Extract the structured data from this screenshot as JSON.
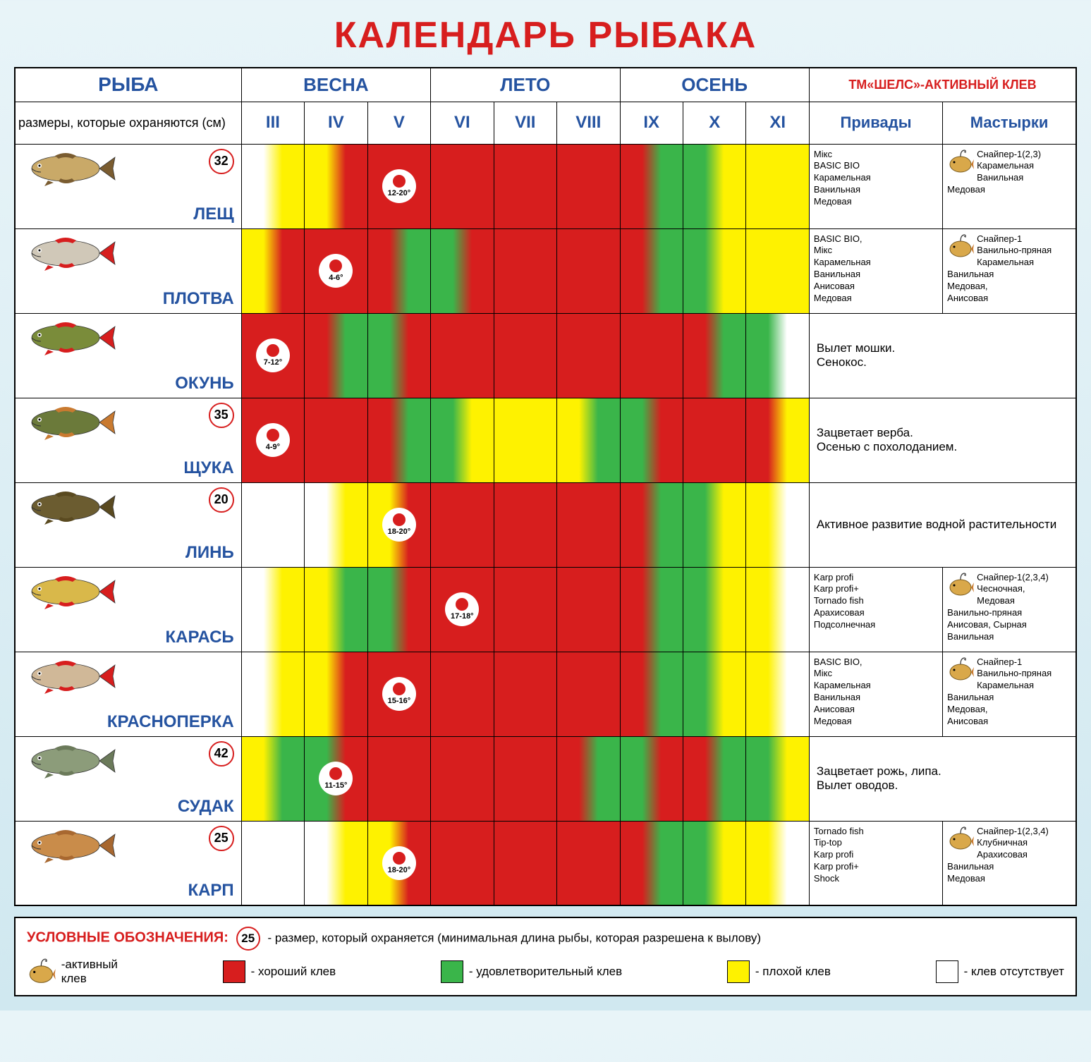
{
  "title": "КАЛЕНДАРЬ РЫБАКА",
  "colors": {
    "red": "#d71e1e",
    "green": "#3ab54a",
    "yellow": "#fef200",
    "white": "#ffffff",
    "blue": "#2553a0",
    "border": "#000000"
  },
  "header": {
    "fish": "РЫБА",
    "spring": "ВЕСНА",
    "summer": "ЛЕТО",
    "autumn": "ОСЕНЬ",
    "brand": "ТМ«ШЕЛС»-АКТИВНЫЙ КЛЕВ",
    "sizes_note": "размеры, которые охраняются (см)",
    "baits": "Привады",
    "doughs": "Мастырки"
  },
  "months": [
    "III",
    "IV",
    "V",
    "VI",
    "VII",
    "VIII",
    "IX",
    "X",
    "XI"
  ],
  "fish": [
    {
      "name": "ЛЕЩ",
      "size": "32",
      "fish_colors": {
        "body": "#c9a968",
        "fin": "#7a5c30"
      },
      "months_gradient": [
        [
          "#ffffff",
          "#fef200"
        ],
        [
          "#fef200",
          "#d71e1e"
        ],
        [
          "#d71e1e",
          "#d71e1e"
        ],
        [
          "#d71e1e",
          "#d71e1e"
        ],
        [
          "#d71e1e",
          "#d71e1e"
        ],
        [
          "#d71e1e",
          "#d71e1e"
        ],
        [
          "#d71e1e",
          "#3ab54a"
        ],
        [
          "#3ab54a",
          "#fef200"
        ],
        [
          "#fef200",
          "#fef200"
        ]
      ],
      "spawn": {
        "month_index": 2,
        "temp": "12-20°"
      },
      "baits": "Мікс\nBASIC BIO\nКарамельная\nВанильная\nМедовая",
      "doughs": "Снайпер-1(2,3)\nКарамельная\nВанильная\nМедовая",
      "has_brand_icon": true
    },
    {
      "name": "ПЛОТВА",
      "size": null,
      "fish_colors": {
        "body": "#d0c8b8",
        "fin": "#d71e1e"
      },
      "months_gradient": [
        [
          "#fef200",
          "#d71e1e"
        ],
        [
          "#d71e1e",
          "#d71e1e"
        ],
        [
          "#d71e1e",
          "#3ab54a"
        ],
        [
          "#3ab54a",
          "#d71e1e"
        ],
        [
          "#d71e1e",
          "#d71e1e"
        ],
        [
          "#d71e1e",
          "#d71e1e"
        ],
        [
          "#d71e1e",
          "#3ab54a"
        ],
        [
          "#3ab54a",
          "#fef200"
        ],
        [
          "#fef200",
          "#fef200"
        ]
      ],
      "spawn": {
        "month_index": 1,
        "temp": "4-6°"
      },
      "baits": "BASIC BIO,\nМікс\nКарамельная\nВанильная\nАнисовая\nМедовая",
      "doughs": "Снайпер-1\nВанильно-пряная\nКарамельная\nВанильная\nМедовая,\nАнисовая",
      "has_brand_icon": true
    },
    {
      "name": "ОКУНЬ",
      "size": null,
      "fish_colors": {
        "body": "#7a8c3a",
        "fin": "#d71e1e"
      },
      "months_gradient": [
        [
          "#d71e1e",
          "#d71e1e"
        ],
        [
          "#d71e1e",
          "#3ab54a"
        ],
        [
          "#3ab54a",
          "#d71e1e"
        ],
        [
          "#d71e1e",
          "#d71e1e"
        ],
        [
          "#d71e1e",
          "#d71e1e"
        ],
        [
          "#d71e1e",
          "#d71e1e"
        ],
        [
          "#d71e1e",
          "#d71e1e"
        ],
        [
          "#d71e1e",
          "#3ab54a"
        ],
        [
          "#3ab54a",
          "#ffffff"
        ]
      ],
      "spawn": {
        "month_index": 0,
        "temp": "7-12°"
      },
      "note": "Вылет мошки.\nСенокос."
    },
    {
      "name": "ЩУКА",
      "size": "35",
      "fish_colors": {
        "body": "#6b7a3a",
        "fin": "#c97a30"
      },
      "months_gradient": [
        [
          "#d71e1e",
          "#d71e1e"
        ],
        [
          "#d71e1e",
          "#d71e1e"
        ],
        [
          "#d71e1e",
          "#3ab54a"
        ],
        [
          "#3ab54a",
          "#fef200"
        ],
        [
          "#fef200",
          "#fef200"
        ],
        [
          "#fef200",
          "#3ab54a"
        ],
        [
          "#3ab54a",
          "#d71e1e"
        ],
        [
          "#d71e1e",
          "#d71e1e"
        ],
        [
          "#d71e1e",
          "#fef200"
        ]
      ],
      "spawn": {
        "month_index": 0,
        "temp": "4-9°"
      },
      "note": "Зацветает верба.\nОсенью с похолоданием."
    },
    {
      "name": "ЛИНЬ",
      "size": "20",
      "fish_colors": {
        "body": "#6b5c30",
        "fin": "#5a4a20"
      },
      "months_gradient": [
        [
          "#ffffff",
          "#ffffff"
        ],
        [
          "#ffffff",
          "#fef200"
        ],
        [
          "#fef200",
          "#d71e1e"
        ],
        [
          "#d71e1e",
          "#d71e1e"
        ],
        [
          "#d71e1e",
          "#d71e1e"
        ],
        [
          "#d71e1e",
          "#d71e1e"
        ],
        [
          "#d71e1e",
          "#3ab54a"
        ],
        [
          "#3ab54a",
          "#fef200"
        ],
        [
          "#fef200",
          "#ffffff"
        ]
      ],
      "spawn": {
        "month_index": 2,
        "temp": "18-20°"
      },
      "note": "Активное развитие водной растительности"
    },
    {
      "name": "КАРАСЬ",
      "size": null,
      "fish_colors": {
        "body": "#d9b84a",
        "fin": "#d71e1e"
      },
      "months_gradient": [
        [
          "#ffffff",
          "#fef200"
        ],
        [
          "#fef200",
          "#3ab54a"
        ],
        [
          "#3ab54a",
          "#d71e1e"
        ],
        [
          "#d71e1e",
          "#d71e1e"
        ],
        [
          "#d71e1e",
          "#d71e1e"
        ],
        [
          "#d71e1e",
          "#d71e1e"
        ],
        [
          "#d71e1e",
          "#3ab54a"
        ],
        [
          "#3ab54a",
          "#fef200"
        ],
        [
          "#fef200",
          "#ffffff"
        ]
      ],
      "spawn": {
        "month_index": 3,
        "temp": "17-18°"
      },
      "baits": "Karp profi\nKarp profi+\nTornado fish\nАрахисовая\nПодсолнечная",
      "doughs": "Снайпер-1(2,3,4)\nЧесночная,\nМедовая\nВанильно-пряная\nАнисовая, Сырная\nВанильная",
      "has_brand_icon": true
    },
    {
      "name": "КРАСНОПЕРКА",
      "size": null,
      "fish_colors": {
        "body": "#d0b898",
        "fin": "#d71e1e"
      },
      "months_gradient": [
        [
          "#ffffff",
          "#fef200"
        ],
        [
          "#fef200",
          "#d71e1e"
        ],
        [
          "#d71e1e",
          "#d71e1e"
        ],
        [
          "#d71e1e",
          "#d71e1e"
        ],
        [
          "#d71e1e",
          "#d71e1e"
        ],
        [
          "#d71e1e",
          "#d71e1e"
        ],
        [
          "#d71e1e",
          "#3ab54a"
        ],
        [
          "#3ab54a",
          "#fef200"
        ],
        [
          "#fef200",
          "#ffffff"
        ]
      ],
      "spawn": {
        "month_index": 2,
        "temp": "15-16°"
      },
      "baits": "BASIC BIO,\nМікс\nКарамельная\nВанильная\nАнисовая\nМедовая",
      "doughs": "Снайпер-1\nВанильно-пряная\nКарамельная\nВанильная\nМедовая,\nАнисовая",
      "has_brand_icon": true
    },
    {
      "name": "СУДАК",
      "size": "42",
      "fish_colors": {
        "body": "#8c9c7a",
        "fin": "#6b7a5a"
      },
      "months_gradient": [
        [
          "#fef200",
          "#3ab54a"
        ],
        [
          "#3ab54a",
          "#d71e1e"
        ],
        [
          "#d71e1e",
          "#d71e1e"
        ],
        [
          "#d71e1e",
          "#d71e1e"
        ],
        [
          "#d71e1e",
          "#d71e1e"
        ],
        [
          "#d71e1e",
          "#3ab54a"
        ],
        [
          "#3ab54a",
          "#d71e1e"
        ],
        [
          "#d71e1e",
          "#3ab54a"
        ],
        [
          "#3ab54a",
          "#fef200"
        ]
      ],
      "spawn": {
        "month_index": 1,
        "temp": "11-15°"
      },
      "note": "Зацветает рожь, липа.\nВылет оводов."
    },
    {
      "name": "КАРП",
      "size": "25",
      "fish_colors": {
        "body": "#c98c4a",
        "fin": "#a86830"
      },
      "months_gradient": [
        [
          "#ffffff",
          "#ffffff"
        ],
        [
          "#ffffff",
          "#fef200"
        ],
        [
          "#fef200",
          "#d71e1e"
        ],
        [
          "#d71e1e",
          "#d71e1e"
        ],
        [
          "#d71e1e",
          "#d71e1e"
        ],
        [
          "#d71e1e",
          "#d71e1e"
        ],
        [
          "#d71e1e",
          "#3ab54a"
        ],
        [
          "#3ab54a",
          "#fef200"
        ],
        [
          "#fef200",
          "#ffffff"
        ]
      ],
      "spawn": {
        "month_index": 2,
        "temp": "18-20°"
      },
      "baits": "Tornado fish\nTip-top\nKarp profi\nKarp profi+\nShock",
      "doughs": "Снайпер-1(2,3,4)\nКлубничная\nАрахисовая\nВанильная\nМедовая",
      "has_brand_icon": true
    }
  ],
  "legend": {
    "title": "УСЛОВНЫЕ ОБОЗНАЧЕНИЯ:",
    "size_example": "25",
    "size_text": "- размер, который охраняется (минимальная длина рыбы, которая разрешена к вылову)",
    "items": [
      {
        "type": "icon",
        "label": "-активный клев"
      },
      {
        "type": "swatch",
        "color": "#d71e1e",
        "label": "- хороший клев"
      },
      {
        "type": "swatch",
        "color": "#3ab54a",
        "label": "- удовлетворительный клев"
      },
      {
        "type": "swatch",
        "color": "#fef200",
        "label": "- плохой клев"
      },
      {
        "type": "swatch",
        "color": "#ffffff",
        "label": "- клев отсутствует"
      }
    ]
  }
}
